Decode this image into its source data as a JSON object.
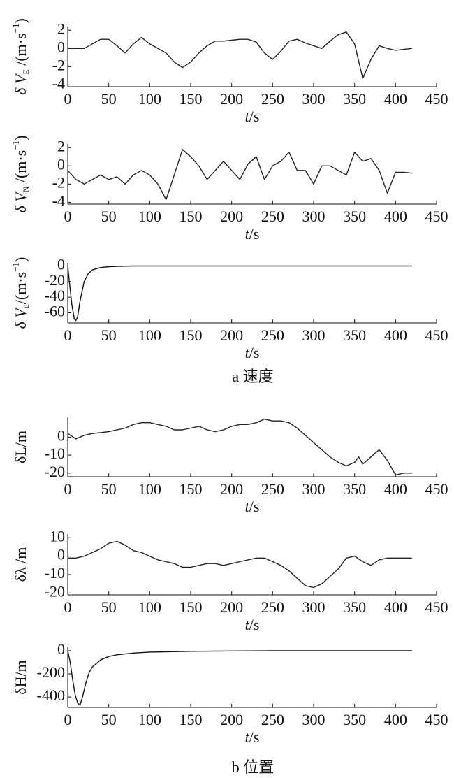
{
  "chart_data": [
    {
      "type": "line",
      "ylabel": [
        "δ V",
        "E",
        " /(m·s",
        "−1",
        ")"
      ],
      "xlabel": [
        "t",
        "/s"
      ],
      "xlim": [
        0,
        450
      ],
      "xticks": [
        0,
        50,
        100,
        150,
        200,
        250,
        300,
        350,
        400,
        450
      ],
      "ylim": [
        -4.2,
        2.4
      ],
      "yticks": [
        -4,
        -2,
        0,
        2
      ],
      "x": [
        0,
        10,
        20,
        30,
        40,
        50,
        60,
        70,
        80,
        90,
        100,
        110,
        120,
        130,
        140,
        150,
        160,
        170,
        180,
        190,
        200,
        210,
        220,
        230,
        240,
        250,
        260,
        270,
        280,
        290,
        300,
        310,
        320,
        330,
        340,
        350,
        360,
        370,
        380,
        390,
        400,
        410,
        420
      ],
      "series": [
        {
          "color": "#222",
          "values": [
            0,
            0,
            0,
            0.5,
            1,
            1,
            0.3,
            -0.5,
            0.5,
            1.2,
            0.5,
            0,
            -0.5,
            -1.5,
            -2.1,
            -1.5,
            -0.5,
            0.3,
            0.8,
            0.8,
            0.9,
            1,
            1,
            0.7,
            -0.5,
            -1.2,
            -0.3,
            0.8,
            1,
            0.6,
            0.3,
            0,
            0.8,
            1.5,
            1.8,
            0.5,
            -3.3,
            -1.2,
            0.3,
            0,
            -0.2,
            -0.1,
            0
          ]
        }
      ]
    },
    {
      "type": "line",
      "ylabel": [
        "δ V",
        "N",
        " /(m·s",
        "−1",
        ")"
      ],
      "xlabel": [
        "t",
        "/s"
      ],
      "xlim": [
        0,
        450
      ],
      "xticks": [
        0,
        50,
        100,
        150,
        200,
        250,
        300,
        350,
        400,
        450
      ],
      "ylim": [
        -4.2,
        2.4
      ],
      "yticks": [
        -4,
        -2,
        0,
        2
      ],
      "x": [
        0,
        10,
        20,
        30,
        40,
        50,
        60,
        70,
        80,
        90,
        100,
        110,
        120,
        130,
        140,
        150,
        160,
        170,
        180,
        190,
        200,
        210,
        220,
        230,
        240,
        250,
        260,
        270,
        280,
        290,
        300,
        310,
        320,
        330,
        340,
        350,
        360,
        370,
        380,
        390,
        400,
        410,
        420
      ],
      "series": [
        {
          "color": "#222",
          "values": [
            -0.5,
            -1.5,
            -2,
            -1.5,
            -1,
            -1.5,
            -1.2,
            -2,
            -1,
            -0.5,
            -1,
            -2,
            -3.7,
            -1,
            1.8,
            1,
            0,
            -1.5,
            -0.5,
            0.5,
            -0.5,
            -1.5,
            0.2,
            1,
            -1.5,
            0,
            0.5,
            1.5,
            -0.5,
            -0.5,
            -2,
            0,
            0,
            -0.5,
            -1,
            1.5,
            0.5,
            0.8,
            -0.5,
            -3,
            -0.7,
            -0.7,
            -0.8
          ]
        }
      ]
    },
    {
      "type": "line",
      "ylabel": [
        "δ V",
        "u",
        "/(m·s",
        "−1",
        ")"
      ],
      "xlabel": [
        "t",
        "/s"
      ],
      "xlim": [
        0,
        450
      ],
      "xticks": [
        0,
        50,
        100,
        150,
        200,
        250,
        300,
        350,
        400,
        450
      ],
      "ylim": [
        -73,
        4
      ],
      "yticks": [
        -60,
        -40,
        -20,
        0
      ],
      "x": [
        0,
        2,
        5,
        8,
        10,
        12,
        15,
        20,
        25,
        30,
        40,
        50,
        60,
        80,
        100,
        150,
        200,
        250,
        300,
        350,
        400,
        420
      ],
      "series": [
        {
          "color": "#111",
          "values": [
            0,
            -20,
            -50,
            -68,
            -70,
            -65,
            -45,
            -20,
            -10,
            -5,
            -2,
            -1,
            -0.5,
            0,
            0,
            0,
            0,
            0,
            0,
            0,
            0,
            0
          ]
        }
      ]
    },
    {
      "type": "line",
      "ylabel": [
        "δL/m"
      ],
      "xlabel": [
        "t",
        "/s"
      ],
      "xlim": [
        0,
        450
      ],
      "xticks": [
        0,
        50,
        100,
        150,
        200,
        250,
        300,
        350,
        400,
        450
      ],
      "ylim": [
        -22,
        11
      ],
      "yticks": [
        -20,
        -10,
        0
      ],
      "x": [
        0,
        10,
        20,
        30,
        40,
        50,
        60,
        70,
        80,
        90,
        100,
        110,
        120,
        130,
        140,
        150,
        160,
        170,
        180,
        190,
        200,
        210,
        220,
        230,
        240,
        250,
        260,
        270,
        280,
        290,
        300,
        310,
        320,
        330,
        340,
        350,
        355,
        360,
        370,
        380,
        390,
        400,
        410,
        420
      ],
      "series": [
        {
          "color": "#222",
          "values": [
            2,
            -1,
            1,
            2,
            2.5,
            3,
            4,
            5,
            7,
            8,
            8,
            7,
            6,
            4,
            4,
            5,
            6,
            4,
            3,
            4,
            6,
            7,
            7,
            8,
            10,
            9,
            9,
            8,
            5,
            1,
            -3,
            -7,
            -11,
            -14,
            -16,
            -14,
            -11,
            -15,
            -11,
            -7,
            -13,
            -21,
            -20,
            -20
          ]
        }
      ]
    },
    {
      "type": "line",
      "ylabel": [
        "δλ /m"
      ],
      "xlabel": [
        "t",
        "/s"
      ],
      "xlim": [
        0,
        450
      ],
      "xticks": [
        0,
        50,
        100,
        150,
        200,
        250,
        300,
        350,
        400,
        450
      ],
      "ylim": [
        -21,
        12
      ],
      "yticks": [
        -20,
        -10,
        0,
        10
      ],
      "x": [
        0,
        10,
        20,
        30,
        40,
        50,
        60,
        70,
        80,
        90,
        100,
        110,
        120,
        130,
        140,
        150,
        160,
        170,
        180,
        190,
        200,
        210,
        220,
        230,
        240,
        250,
        260,
        270,
        280,
        290,
        300,
        310,
        320,
        330,
        340,
        350,
        360,
        370,
        380,
        390,
        400,
        410,
        420
      ],
      "series": [
        {
          "color": "#222",
          "values": [
            -1,
            -1,
            0,
            2,
            4,
            7,
            8,
            6,
            3,
            2,
            0,
            -2,
            -3,
            -4,
            -6,
            -6,
            -5,
            -4,
            -4,
            -5,
            -4,
            -3,
            -2,
            -1,
            -1,
            -3,
            -5,
            -8,
            -12,
            -16,
            -17,
            -15,
            -11,
            -7,
            -1,
            0,
            -3,
            -5,
            -2,
            -1,
            -1,
            -1,
            -1
          ]
        }
      ]
    },
    {
      "type": "line",
      "ylabel": [
        "δH/m"
      ],
      "xlabel": [
        "t",
        "/s"
      ],
      "xlim": [
        0,
        450
      ],
      "xticks": [
        0,
        50,
        100,
        150,
        200,
        250,
        300,
        350,
        400,
        450
      ],
      "ylim": [
        -490,
        30
      ],
      "yticks": [
        -400,
        -200,
        0
      ],
      "x": [
        0,
        3,
        6,
        9,
        12,
        15,
        18,
        22,
        26,
        30,
        40,
        50,
        60,
        80,
        100,
        150,
        200,
        250,
        300,
        350,
        400,
        420
      ],
      "series": [
        {
          "color": "#111",
          "values": [
            0,
            -100,
            -250,
            -380,
            -450,
            -470,
            -400,
            -280,
            -190,
            -140,
            -80,
            -50,
            -35,
            -20,
            -12,
            -5,
            -2,
            0,
            0,
            0,
            0,
            0
          ]
        }
      ]
    }
  ],
  "captions": [
    "a 速度",
    "b 位置"
  ]
}
